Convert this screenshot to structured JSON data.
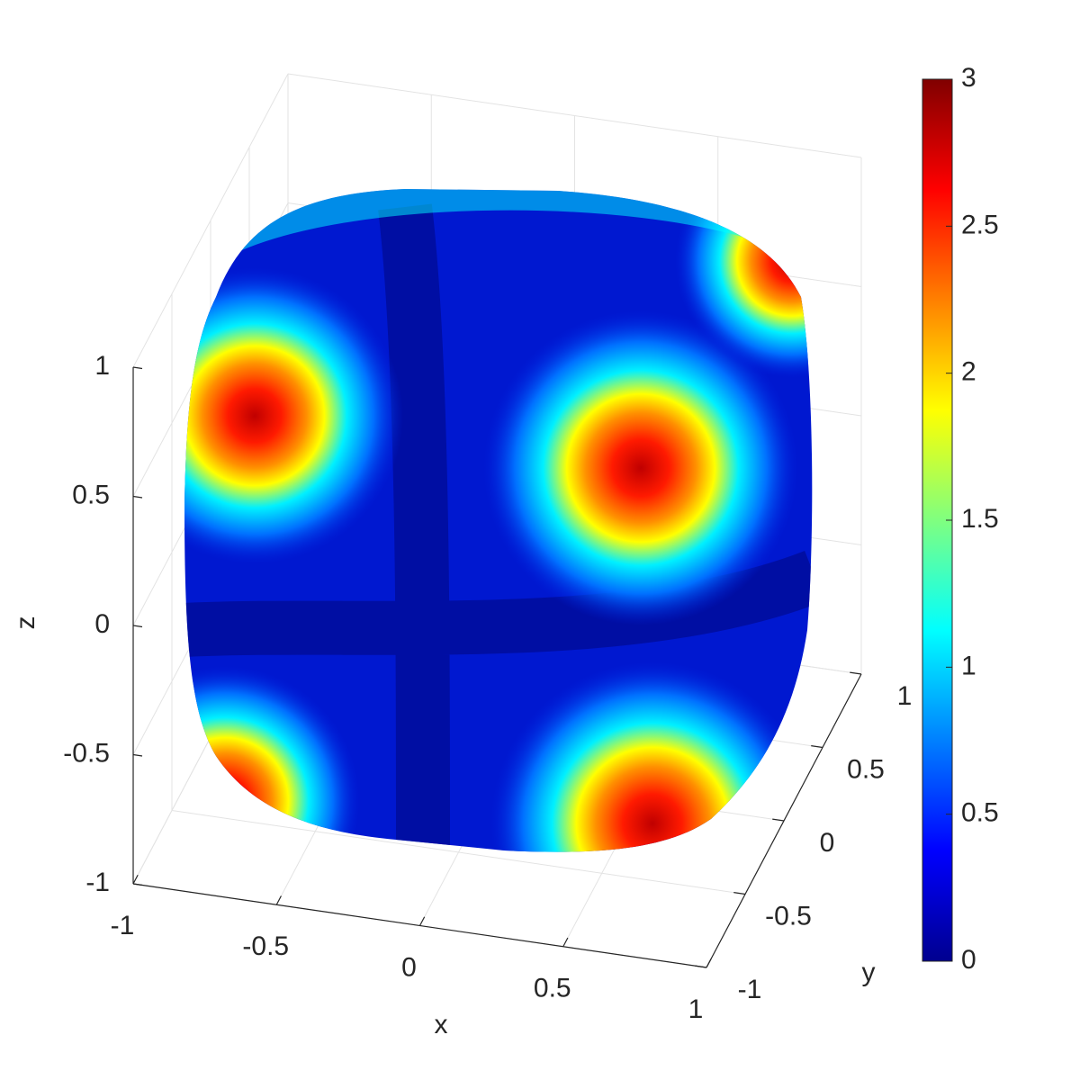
{
  "chart_data": {
    "type": "surface",
    "xlabel": "x",
    "ylabel": "y",
    "zlabel": "z",
    "xlim": [
      -1,
      1
    ],
    "ylim": [
      -1,
      1
    ],
    "zlim": [
      -1,
      1
    ],
    "xticks": [
      -1,
      -0.5,
      0,
      0.5,
      1
    ],
    "yticks": [
      -1,
      -0.5,
      0,
      0.5,
      1
    ],
    "zticks": [
      -1,
      -0.5,
      0,
      0.5,
      1
    ],
    "grid": true,
    "colormap": "jet",
    "clim": [
      0,
      3
    ],
    "cticks": [
      0,
      0.5,
      1,
      1.5,
      2,
      2.5,
      3
    ]
  }
}
